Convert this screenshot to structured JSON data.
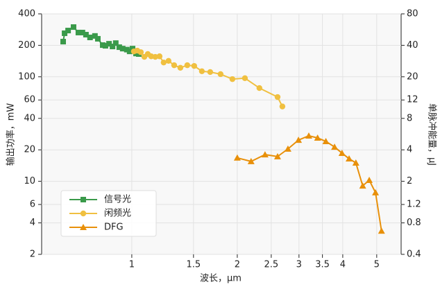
{
  "chart_data": {
    "type": "line",
    "xlabel": "波长，μm",
    "ylabel": "输出功率，mW",
    "y2label": "单脉冲能量，μJ",
    "xscale": "log",
    "yscale": "log",
    "grid": true,
    "legend": "lower left",
    "xlim": [
      0.553,
      5.87
    ],
    "xticks": [
      1,
      1.5,
      2,
      2.5,
      3,
      3.5,
      4,
      5
    ],
    "ylim": [
      2,
      400
    ],
    "yticks": [
      2,
      4,
      6,
      10,
      20,
      40,
      60,
      100,
      200,
      400
    ],
    "y2lim": [
      0.4,
      80
    ],
    "y2ticks": [
      0.4,
      0.8,
      1.2,
      2,
      4,
      8,
      12,
      20,
      40,
      80
    ],
    "series": [
      {
        "name": "信号光",
        "color": "#3a9a4a",
        "marker": "square",
        "x": [
          0.637,
          0.643,
          0.658,
          0.682,
          0.704,
          0.723,
          0.74,
          0.76,
          0.785,
          0.8,
          0.826,
          0.841,
          0.861,
          0.881,
          0.9,
          0.921,
          0.942,
          0.968,
          0.986,
          1.005,
          1.028,
          1.047
        ],
        "values": [
          217,
          261,
          277,
          299,
          265,
          265,
          253,
          238,
          246,
          231,
          201,
          198,
          207,
          195,
          210,
          192,
          186,
          182,
          175,
          186,
          167,
          165
        ]
      },
      {
        "name": "闲频光",
        "color": "#f0c040",
        "marker": "circle",
        "x": [
          1.014,
          1.037,
          1.061,
          1.086,
          1.111,
          1.136,
          1.167,
          1.2,
          1.233,
          1.273,
          1.321,
          1.376,
          1.44,
          1.507,
          1.585,
          1.674,
          1.792,
          1.937,
          2.103,
          2.313,
          2.606,
          2.69
        ],
        "values": [
          175,
          178,
          172,
          155,
          165,
          157,
          155,
          157,
          137,
          142,
          129,
          122,
          129,
          127,
          113,
          111,
          106,
          95,
          97,
          78,
          64,
          52
        ]
      },
      {
        "name": "DFG",
        "color": "#e8900a",
        "marker": "triangle",
        "axis": "y2",
        "x": [
          2.0,
          2.19,
          2.4,
          2.606,
          2.79,
          2.99,
          3.2,
          3.39,
          3.58,
          3.79,
          3.98,
          4.17,
          4.36,
          4.56,
          4.76,
          4.96,
          5.16
        ],
        "values": [
          3.35,
          3.1,
          3.6,
          3.45,
          4.08,
          4.96,
          5.45,
          5.2,
          4.82,
          4.26,
          3.72,
          3.29,
          3.0,
          1.81,
          2.05,
          1.56,
          0.67
        ]
      }
    ]
  }
}
